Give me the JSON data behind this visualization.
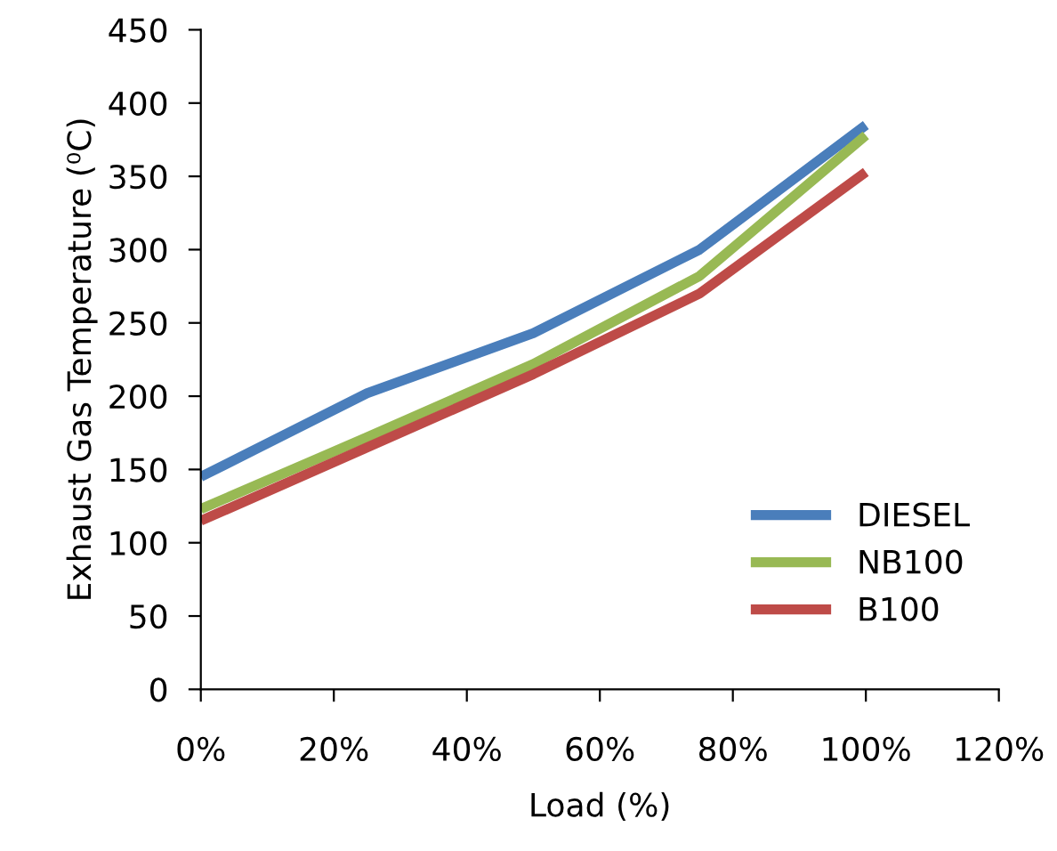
{
  "chart_data": {
    "type": "line",
    "xlabel": "Load (%)",
    "ylabel": "Exhaust Gas Temperature (⁰C)",
    "x": [
      0,
      25,
      50,
      75,
      100
    ],
    "series": [
      {
        "name": "DIESEL",
        "color": "#4a7ebb",
        "values": [
          145,
          202,
          243,
          300,
          385
        ]
      },
      {
        "name": "NB100",
        "color": "#98b954",
        "values": [
          123,
          172,
          222,
          282,
          378
        ]
      },
      {
        "name": "B100",
        "color": "#be4b48",
        "values": [
          115,
          165,
          215,
          270,
          353
        ]
      }
    ],
    "xlim": [
      0,
      120
    ],
    "xticks": [
      {
        "value": 0,
        "label": "0%"
      },
      {
        "value": 20,
        "label": "20%"
      },
      {
        "value": 40,
        "label": "40%"
      },
      {
        "value": 60,
        "label": "60%"
      },
      {
        "value": 80,
        "label": "80%"
      },
      {
        "value": 100,
        "label": "100%"
      },
      {
        "value": 120,
        "label": "120%"
      }
    ],
    "ylim": [
      0,
      450
    ],
    "yticks": [
      0,
      50,
      100,
      150,
      200,
      250,
      300,
      350,
      400,
      450
    ],
    "grid": false,
    "legend": "lower right",
    "marker": "none",
    "line_style": "solid"
  }
}
